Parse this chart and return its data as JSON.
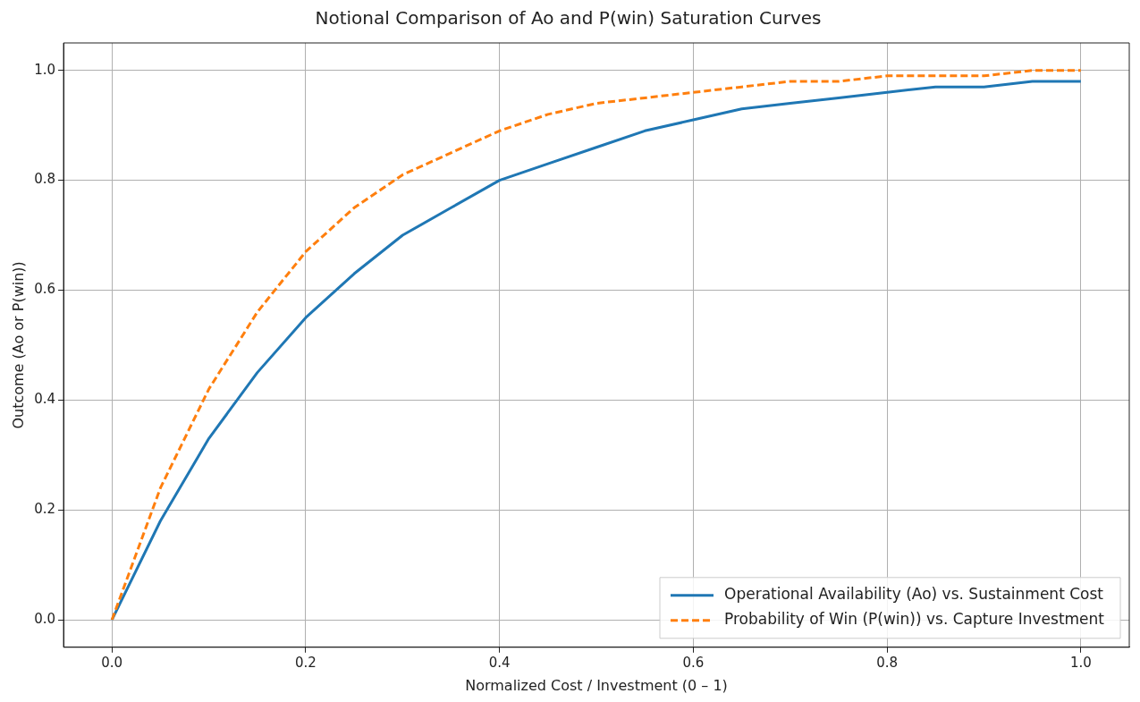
{
  "chart_data": {
    "type": "line",
    "title": "Notional Comparison of Ao and P(win) Saturation Curves",
    "xlabel": "Normalized Cost / Investment (0 – 1)",
    "ylabel": "Outcome (Ao or P(win))",
    "x": [
      0,
      0.05,
      0.1,
      0.15,
      0.2,
      0.25,
      0.3,
      0.35,
      0.4,
      0.45,
      0.5,
      0.55,
      0.6,
      0.65,
      0.7,
      0.75,
      0.8,
      0.85,
      0.9,
      0.95,
      1
    ],
    "series": [
      {
        "name": "Operational Availability (Ao) vs. Sustainment Cost",
        "color": "#1f77b4",
        "line_style": "solid",
        "values": [
          0,
          0.18,
          0.33,
          0.45,
          0.55,
          0.63,
          0.7,
          0.75,
          0.8,
          0.83,
          0.86,
          0.89,
          0.91,
          0.93,
          0.94,
          0.95,
          0.96,
          0.97,
          0.97,
          0.98,
          0.98
        ]
      },
      {
        "name": "Probability of Win (P(win)) vs. Capture Investment",
        "color": "#ff7f0e",
        "line_style": "dashed",
        "values": [
          0,
          0.24,
          0.42,
          0.56,
          0.67,
          0.75,
          0.81,
          0.85,
          0.89,
          0.92,
          0.94,
          0.95,
          0.96,
          0.97,
          0.98,
          0.98,
          0.99,
          0.99,
          0.99,
          1.0,
          1.0
        ]
      }
    ],
    "xlim": [
      -0.05,
      1.05
    ],
    "ylim": [
      -0.05,
      1.05
    ],
    "xticks": [
      {
        "value": 0,
        "label": "0.0"
      },
      {
        "value": 0.2,
        "label": "0.2"
      },
      {
        "value": 0.4,
        "label": "0.4"
      },
      {
        "value": 0.6,
        "label": "0.6"
      },
      {
        "value": 0.8,
        "label": "0.8"
      },
      {
        "value": 1,
        "label": "1.0"
      }
    ],
    "yticks": [
      {
        "value": 0,
        "label": "0.0"
      },
      {
        "value": 0.2,
        "label": "0.2"
      },
      {
        "value": 0.4,
        "label": "0.4"
      },
      {
        "value": 0.6,
        "label": "0.6"
      },
      {
        "value": 0.8,
        "label": "0.8"
      },
      {
        "value": 1,
        "label": "1.0"
      }
    ],
    "grid": true,
    "legend": "bottom right",
    "marker": "none"
  }
}
